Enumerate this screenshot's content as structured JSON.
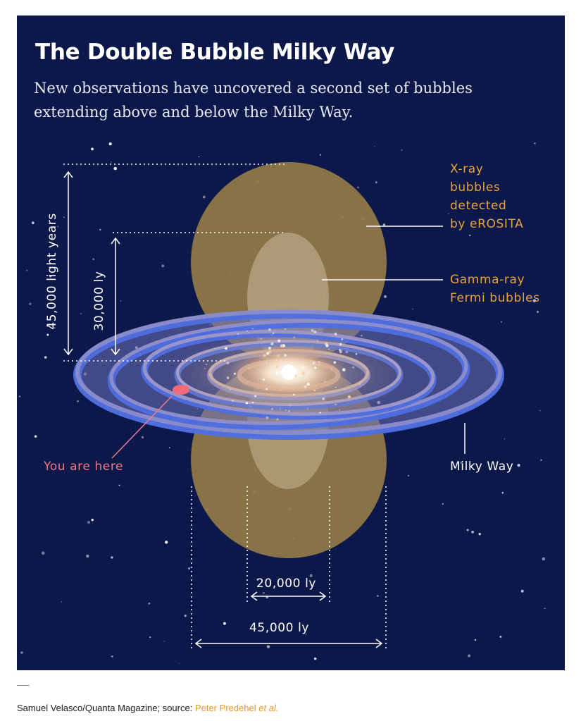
{
  "title": "The Double Bubble Milky Way",
  "subtitle": "New observations have uncovered a second set of bubbles extending above and below the Milky Way.",
  "labels": {
    "xray_line1": "X-ray",
    "xray_line2": "bubbles",
    "xray_line3": "detected",
    "xray_line4": "by eROSITA",
    "gamma_line1": "Gamma-ray",
    "gamma_line2": "Fermi bubbles",
    "milky_way": "Milky Way",
    "you_are_here": "You are here"
  },
  "dimensions": {
    "xray_height": "45,000 light years",
    "fermi_height": "30,000 ly",
    "fermi_width": "20,000 ly",
    "xray_width": "45,000 ly"
  },
  "credit": {
    "prefix": "Samuel Velasco/Quanta Magazine; source: ",
    "source_name": "Peter Predehel ",
    "source_etal": "et al."
  },
  "colors": {
    "background": "#0c1849",
    "xray_bubble": "#8f7748",
    "fermi_bubble": "#cdbb9c",
    "galaxy_arms": "#5a73d6",
    "label_orange": "#e9a33c",
    "you_are_here": "#f07a86"
  }
}
